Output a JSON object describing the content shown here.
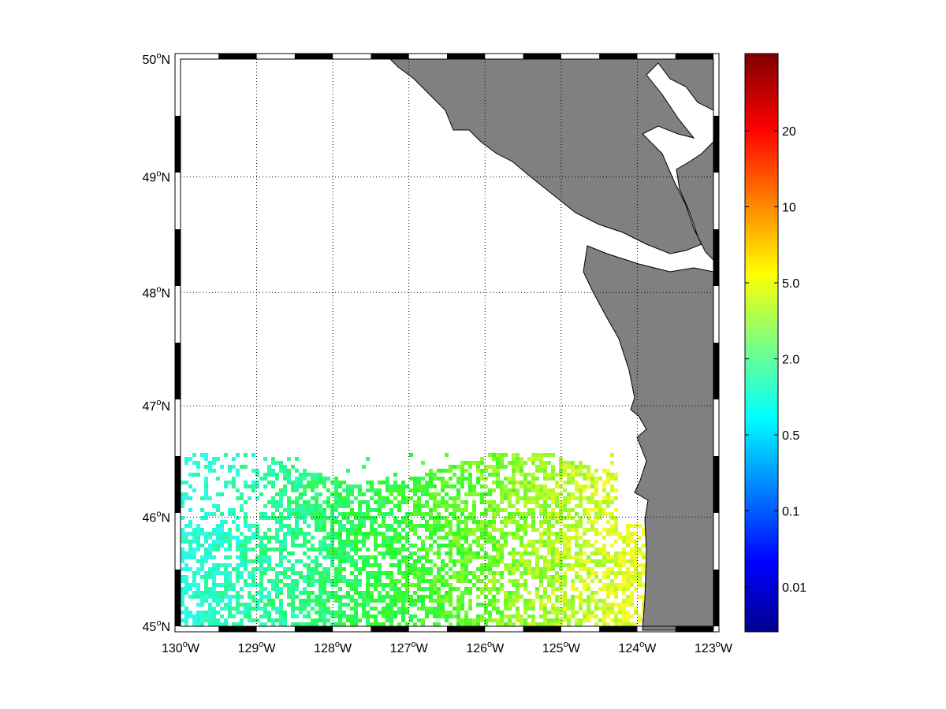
{
  "map": {
    "lat_ticks": [
      45,
      46,
      47,
      48,
      49,
      50
    ],
    "lon_ticks": [
      130,
      129,
      128,
      127,
      126,
      125,
      124,
      123
    ],
    "ylim": [
      45,
      50
    ],
    "xlim": [
      130,
      123
    ],
    "lat_hemisphere": "N",
    "lon_hemisphere": "W",
    "degree_mark": "o",
    "grid": true
  },
  "colorbar": {
    "ticks": [
      "0.01",
      "0.1",
      "0.5",
      "2.0",
      "5.0",
      "10",
      "20"
    ]
  }
}
